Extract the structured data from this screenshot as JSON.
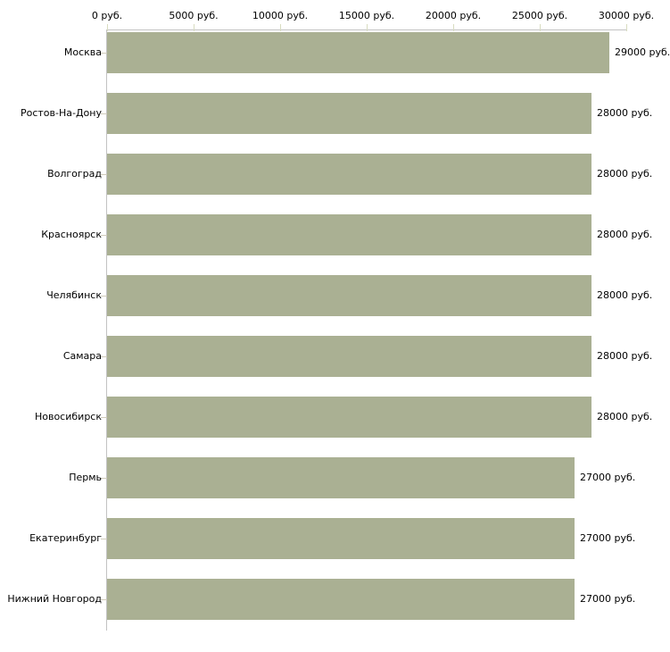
{
  "chart_data": {
    "type": "bar",
    "orientation": "horizontal",
    "categories": [
      "Москва",
      "Ростов-На-Дону",
      "Волгоград",
      "Красноярск",
      "Челябинск",
      "Самара",
      "Новосибирск",
      "Пермь",
      "Екатеринбург",
      "Нижний Новгород"
    ],
    "values": [
      29000,
      28000,
      28000,
      28000,
      28000,
      28000,
      28000,
      27000,
      27000,
      27000
    ],
    "value_labels": [
      "29000 руб.",
      "28000 руб.",
      "28000 руб.",
      "28000 руб.",
      "28000 руб.",
      "28000 руб.",
      "28000 руб.",
      "27000 руб.",
      "27000 руб.",
      "27000 руб."
    ],
    "x_tick_values": [
      0,
      5000,
      10000,
      15000,
      20000,
      25000,
      30000
    ],
    "x_tick_labels": [
      "0 руб.",
      "5000 руб.",
      "10000 руб.",
      "15000 руб.",
      "20000 руб.",
      "25000 руб.",
      "30000 руб."
    ],
    "xlim": [
      0,
      30000
    ],
    "grid": false,
    "axis_position": "top",
    "colors": {
      "bar": "#aab093",
      "axis_line": "#c3c3c3",
      "axis_tick": "#d8dcc0",
      "row_tick": "#d0cbbb",
      "text": "#000000",
      "background": "#ffffff"
    }
  }
}
